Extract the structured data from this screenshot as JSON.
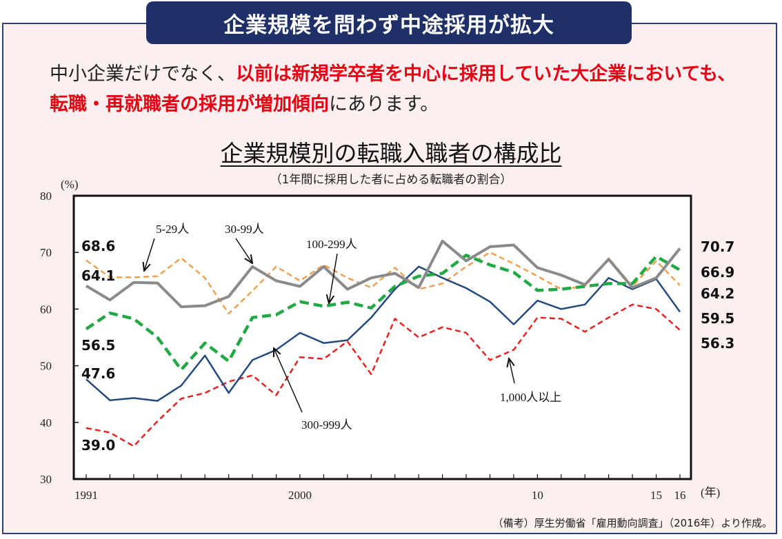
{
  "header": {
    "banner": "企業規模を問わず中途採用が拡大",
    "lead_part1": "中小企業だけでなく、",
    "lead_red": "以前は新規学卒者を中心に採用していた大企業においても、転職・再就職者の採用が増加傾向",
    "lead_part2": "にあります。",
    "text_color": "#222222",
    "highlight_color": "#e60012",
    "banner_color": "#1f2f68"
  },
  "chart_data": {
    "type": "line",
    "title": "企業規模別の転職入職者の構成比",
    "subtitle": "（1年間に採用した者に占める転職者の割合）",
    "ylabel": "(%)",
    "xunit": "(年)",
    "ylim": [
      30,
      80
    ],
    "yticks": [
      "30",
      "40",
      "50",
      "60",
      "70",
      "80"
    ],
    "x": [
      1991,
      1992,
      1993,
      1994,
      1995,
      1996,
      1997,
      1998,
      1999,
      2000,
      2001,
      2002,
      2003,
      2004,
      2005,
      2006,
      2007,
      2008,
      2009,
      2010,
      2011,
      2012,
      2013,
      2014,
      2015,
      2016
    ],
    "xticks": [
      {
        "x": 1991,
        "label": "1991"
      },
      {
        "x": 2000,
        "label": "2000"
      },
      {
        "x": 2010,
        "label": "10"
      },
      {
        "x": 2015,
        "label": "15"
      },
      {
        "x": 2016,
        "label": "16"
      }
    ],
    "grid": false,
    "series": [
      {
        "name": "5-29人",
        "color": "#f0a050",
        "style": "dashed",
        "width": 2.5,
        "values": [
          68.6,
          65.6,
          65.6,
          65.8,
          69.0,
          65.5,
          59.2,
          63.2,
          67.5,
          65.0,
          67.8,
          65.5,
          63.8,
          67.3,
          63.5,
          64.5,
          67.5,
          70.0,
          68.0,
          65.8,
          63.5,
          64.0,
          69.0,
          64.0,
          68.5,
          64.2
        ]
      },
      {
        "name": "30-99人",
        "color": "#8a8a8a",
        "style": "solid",
        "width": 4,
        "values": [
          64.1,
          61.6,
          64.7,
          64.6,
          60.4,
          60.6,
          62.2,
          67.5,
          65.0,
          64.0,
          67.5,
          63.5,
          65.5,
          66.3,
          63.8,
          72.0,
          68.5,
          71.0,
          71.3,
          67.3,
          66.0,
          64.3,
          68.8,
          63.8,
          65.5,
          70.7
        ]
      },
      {
        "name": "100-299人",
        "color": "#22a845",
        "style": "dashed",
        "width": 4.5,
        "values": [
          56.5,
          59.3,
          58.3,
          55.0,
          49.3,
          54.0,
          50.8,
          58.5,
          59.0,
          61.3,
          60.5,
          61.2,
          60.2,
          64.0,
          65.8,
          66.3,
          69.5,
          67.8,
          66.5,
          63.3,
          63.5,
          64.0,
          64.5,
          64.5,
          69.3,
          66.9
        ]
      },
      {
        "name": "300-999人",
        "color": "#234a7e",
        "style": "solid",
        "width": 2.5,
        "values": [
          47.6,
          43.9,
          44.3,
          43.8,
          46.5,
          51.8,
          45.2,
          51.0,
          52.8,
          55.8,
          54.0,
          54.5,
          58.5,
          63.5,
          67.5,
          65.5,
          63.7,
          61.3,
          57.3,
          61.5,
          60.0,
          60.8,
          65.5,
          63.5,
          65.3,
          59.5
        ]
      },
      {
        "name": "1,000人以上",
        "color": "#e8201e",
        "style": "dashed",
        "width": 2.5,
        "values": [
          39.0,
          38.2,
          35.8,
          40.2,
          44.2,
          45.2,
          47.2,
          48.3,
          44.8,
          51.5,
          51.2,
          54.3,
          48.5,
          58.3,
          55.0,
          56.8,
          55.8,
          51.0,
          52.8,
          58.5,
          58.3,
          56.0,
          58.5,
          60.8,
          60.0,
          56.3
        ]
      }
    ],
    "start_labels": [
      "68.6",
      "64.1",
      "56.5",
      "47.6",
      "39.0"
    ],
    "end_labels": [
      "70.7",
      "66.9",
      "64.2",
      "59.5",
      "56.3"
    ],
    "annotations": [
      {
        "text": "5-29人",
        "series": "5-29人"
      },
      {
        "text": "30-99人",
        "series": "30-99人"
      },
      {
        "text": "100-299人",
        "series": "100-299人"
      },
      {
        "text": "300-999人",
        "series": "300-999人"
      },
      {
        "text": "1,000人以上",
        "series": "1,000人以上"
      }
    ],
    "source": "（備考）厚生労働省「雇用動向調査」（2016年）より作成。"
  }
}
